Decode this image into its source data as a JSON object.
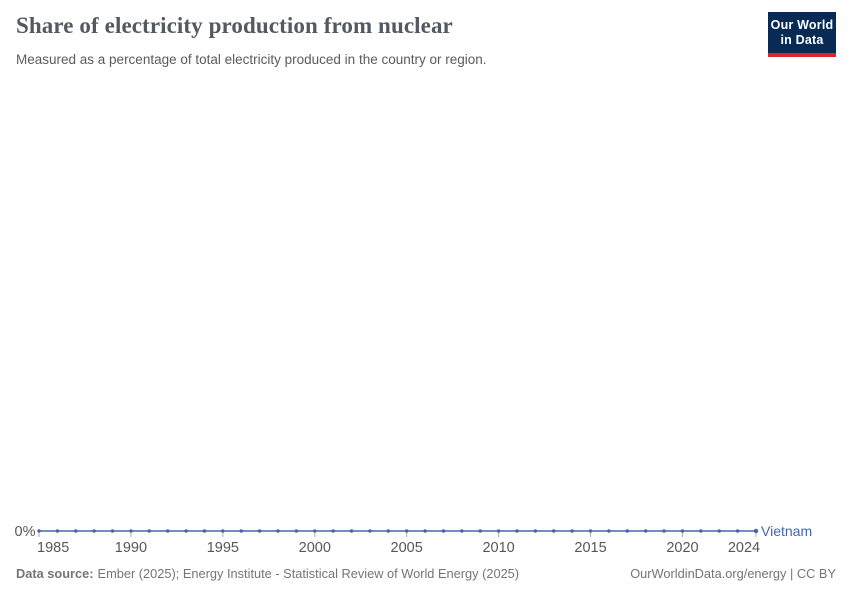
{
  "header": {
    "title": "Share of electricity production from nuclear",
    "subtitle": "Measured as a percentage of total electricity produced in the country or region.",
    "logo_line1": "Our World",
    "logo_line2": "in Data"
  },
  "chart_data": {
    "type": "line",
    "title": "Share of electricity production from nuclear",
    "x": [
      1985,
      1986,
      1987,
      1988,
      1989,
      1990,
      1991,
      1992,
      1993,
      1994,
      1995,
      1996,
      1997,
      1998,
      1999,
      2000,
      2001,
      2002,
      2003,
      2004,
      2005,
      2006,
      2007,
      2008,
      2009,
      2010,
      2011,
      2012,
      2013,
      2014,
      2015,
      2016,
      2017,
      2018,
      2019,
      2020,
      2021,
      2022,
      2023,
      2024
    ],
    "series": [
      {
        "name": "Vietnam",
        "color": "#4268A8",
        "values": [
          0,
          0,
          0,
          0,
          0,
          0,
          0,
          0,
          0,
          0,
          0,
          0,
          0,
          0,
          0,
          0,
          0,
          0,
          0,
          0,
          0,
          0,
          0,
          0,
          0,
          0,
          0,
          0,
          0,
          0,
          0,
          0,
          0,
          0,
          0,
          0,
          0,
          0,
          0,
          0
        ]
      }
    ],
    "x_ticks": [
      1985,
      1990,
      1995,
      2000,
      2005,
      2010,
      2015,
      2020,
      2024
    ],
    "y_ticks": [
      "0%"
    ],
    "xlim": [
      1985,
      2024
    ],
    "ylim": [
      0,
      1
    ],
    "grid": false,
    "markers": true,
    "legend_position": "line-end-label"
  },
  "footer": {
    "source_label": "Data source:",
    "source_text": "Ember (2025); Energy Institute - Statistical Review of World Energy (2025)",
    "link_text": "OurWorldinData.org/energy | CC BY"
  },
  "colors": {
    "series": "#4268A8",
    "axis_text": "#575757",
    "axis_tick": "#A8ADB3",
    "title": "#535961",
    "subtitle": "#5B5B5B",
    "footer_text": "#757575",
    "logo_bg": "#082B56",
    "logo_red": "#D8252E"
  }
}
